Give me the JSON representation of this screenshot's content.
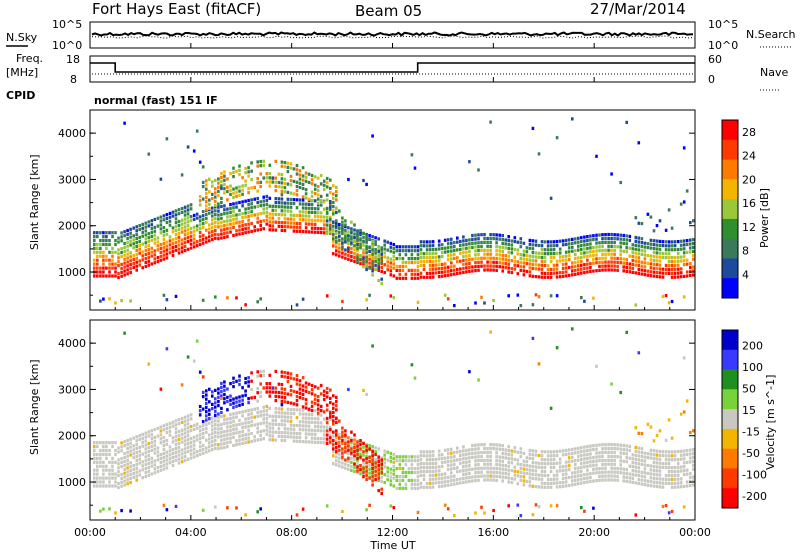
{
  "header": {
    "station": "Fort Hays East (fitACF)",
    "beam": "Beam 05",
    "date": "27/Mar/2014"
  },
  "nsky_panel": {
    "left_label": "N.Sky",
    "right_label": "N.Search",
    "left_ticks": [
      "10^5",
      "10^0"
    ],
    "right_ticks": [
      "10^5",
      "10^0"
    ]
  },
  "freq_panel": {
    "left_label_line1": "Freq.",
    "left_label_line2": "[MHz]",
    "left_ticks": [
      "18",
      "8"
    ],
    "right_label": "Nave",
    "right_ticks": [
      "60",
      "0"
    ],
    "cpid_label": "CPID",
    "cpid_text": "normal (fast) 151 IF"
  },
  "colors": {
    "power_scale": [
      "#0000ff",
      "#1e4a9e",
      "#3a7a5a",
      "#2f8f2f",
      "#9bc83a",
      "#f2b500",
      "#ff7a00",
      "#ff3a00",
      "#ff0000"
    ],
    "velocity_scale": [
      "#0000cc",
      "#3a3aff",
      "#1f8f1f",
      "#7ad23a",
      "#c8c8c0",
      "#f2b500",
      "#ff7a00",
      "#ff3a00",
      "#ff0000"
    ]
  },
  "chart_data": [
    {
      "type": "heatmap",
      "name": "power",
      "ylabel": "Slant Range [km]",
      "ylim": [
        180,
        4500
      ],
      "yticks": [
        "1000",
        "2000",
        "3000",
        "4000"
      ],
      "xlim": [
        "00:00",
        "24:00"
      ],
      "xticks": [
        "00:00",
        "04:00",
        "08:00",
        "12:00",
        "16:00",
        "20:00",
        "00:00"
      ],
      "colorbar": {
        "label": "Power [dB]",
        "ticks": [
          "4",
          "8",
          "12",
          "16",
          "20",
          "24",
          "28"
        ]
      }
    },
    {
      "type": "heatmap",
      "name": "velocity",
      "ylabel": "Slant Range [km]",
      "ylim": [
        180,
        4500
      ],
      "yticks": [
        "1000",
        "2000",
        "3000",
        "4000"
      ],
      "xlim": [
        "00:00",
        "24:00"
      ],
      "xticks": [
        "00:00",
        "04:00",
        "08:00",
        "12:00",
        "16:00",
        "20:00",
        "00:00"
      ],
      "xlabel": "Time UT",
      "colorbar": {
        "label": "Velocity [m s^-1]",
        "ticks": [
          "200",
          "100",
          "50",
          "15",
          "-15",
          "-50",
          "-100",
          "-200"
        ]
      }
    }
  ]
}
